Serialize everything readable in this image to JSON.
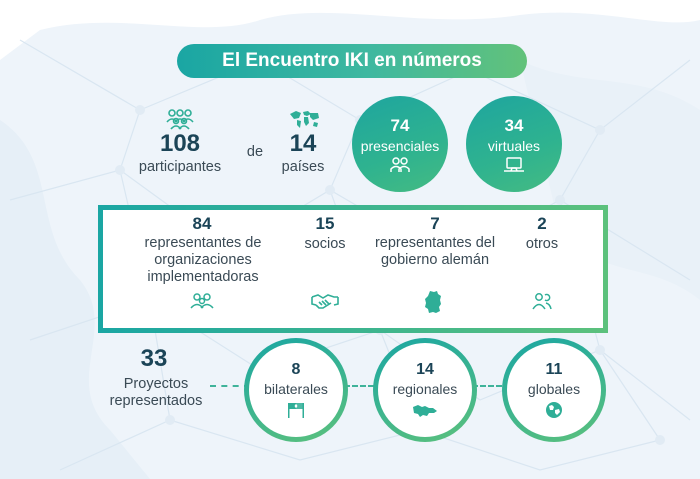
{
  "title": "El Encuentro IKI en números",
  "row1": {
    "participants": {
      "value": "108",
      "label": "participantes"
    },
    "connector": "de",
    "countries": {
      "value": "14",
      "label": "países"
    },
    "in_person": {
      "value": "74",
      "label": "presenciales"
    },
    "virtual": {
      "value": "34",
      "label": "virtuales"
    }
  },
  "row2": {
    "org_reps": {
      "value": "84",
      "label": "representantes de organizaciones implementadoras"
    },
    "partners": {
      "value": "15",
      "label": "socios"
    },
    "gov_reps": {
      "value": "7",
      "label": "representantes del gobierno alemán"
    },
    "others": {
      "value": "2",
      "label": "otros"
    }
  },
  "row3": {
    "projects": {
      "value": "33",
      "label": "Proyectos representados"
    },
    "bilateral": {
      "value": "8",
      "label": "bilaterales"
    },
    "regional": {
      "value": "14",
      "label": "regionales"
    },
    "global": {
      "value": "11",
      "label": "globales"
    }
  },
  "colors": {
    "teal": "#1aa6a3",
    "green": "#5cc17c",
    "navy": "#1b4457"
  },
  "icons": [
    "people-group-icon",
    "world-map-icon",
    "two-people-icon",
    "laptop-icon",
    "handshake-icon",
    "germany-map-icon",
    "flags-icon",
    "region-map-icon",
    "globe-icon"
  ]
}
